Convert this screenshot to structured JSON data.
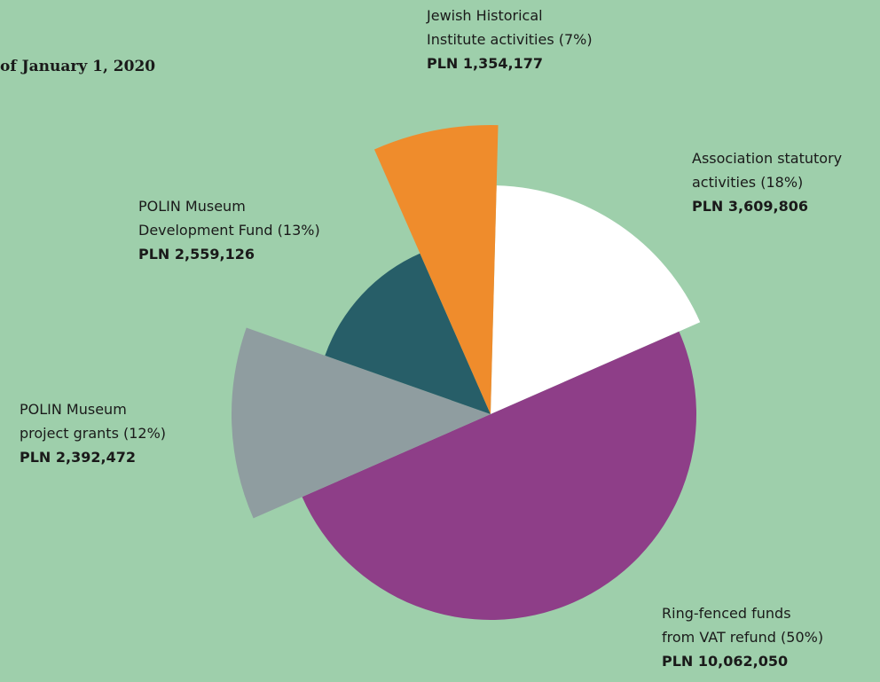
{
  "chart_data": {
    "type": "pie",
    "title": "of January 1, 2020",
    "categories": [
      "Association statutory activities",
      "Ring-fenced funds from VAT refund",
      "POLIN Museum project grants",
      "POLIN Museum Development Fund",
      "Jewish Historical Institute activities"
    ],
    "values": [
      18,
      50,
      12,
      13,
      7
    ],
    "value_labels": [
      "(18%)",
      "(50%)",
      "(12%)",
      "(13%)",
      "(7%)"
    ],
    "amount_labels": [
      "PLN 3,609,806",
      "PLN 10,062,050",
      "PLN 2,392,472",
      "PLN 2,559,126",
      "PLN 1,354,177"
    ],
    "colors": [
      "#ffffff",
      "#8e3e88",
      "#8f9da0",
      "#275e68",
      "#ef8c2c"
    ]
  }
}
